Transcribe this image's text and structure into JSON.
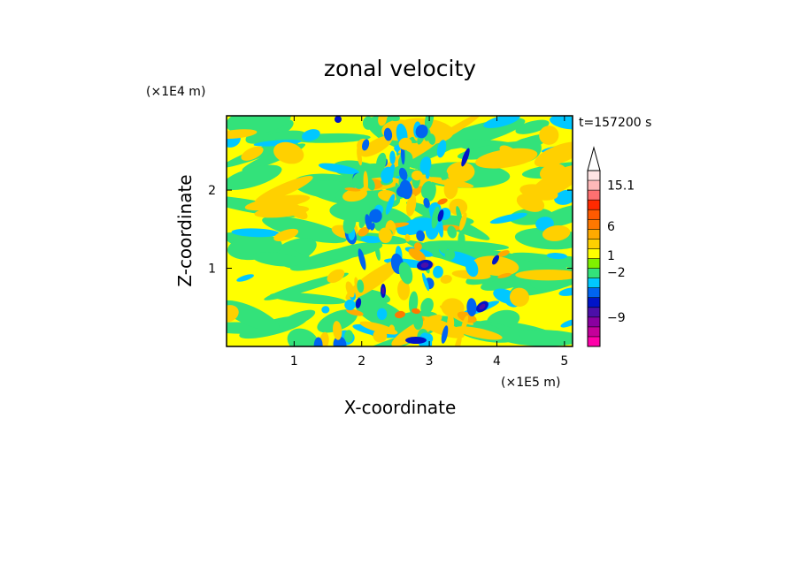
{
  "chart_data": {
    "type": "heatmap",
    "title": "zonal velocity",
    "xlabel": "X-coordinate",
    "ylabel": "Z-coordinate",
    "x_unit_label": "(×1E5 m)",
    "y_unit_label": "(×1E4 m)",
    "time_label": "t=157200 s",
    "xlim": [
      0,
      5.12
    ],
    "ylim": [
      0,
      2.95
    ],
    "x_ticks": [
      {
        "value": 1,
        "label": "1"
      },
      {
        "value": 2,
        "label": "2"
      },
      {
        "value": 3,
        "label": "3"
      },
      {
        "value": 4,
        "label": "4"
      },
      {
        "value": 5,
        "label": "5"
      }
    ],
    "y_ticks": [
      {
        "value": 1,
        "label": "1"
      },
      {
        "value": 2,
        "label": "2"
      }
    ],
    "colorbar": {
      "colors": [
        "#ff00aa",
        "#c4009a",
        "#8a00a0",
        "#4b0fa8",
        "#0014c8",
        "#0064f0",
        "#00c8ff",
        "#33e27a",
        "#80f000",
        "#ffff00",
        "#ffd000",
        "#ffaa00",
        "#ff7800",
        "#ff5a00",
        "#ff2a00",
        "#ff7070",
        "#ffb8b8",
        "#ffe4e4"
      ],
      "tick_labels": [
        {
          "label": "15.1",
          "level": 16.5
        },
        {
          "label": "6",
          "level": 12.3
        },
        {
          "label": "1",
          "level": 9.3
        },
        {
          "label": "−2",
          "level": 7.6
        },
        {
          "label": "−9",
          "level": 3.0
        }
      ]
    }
  }
}
